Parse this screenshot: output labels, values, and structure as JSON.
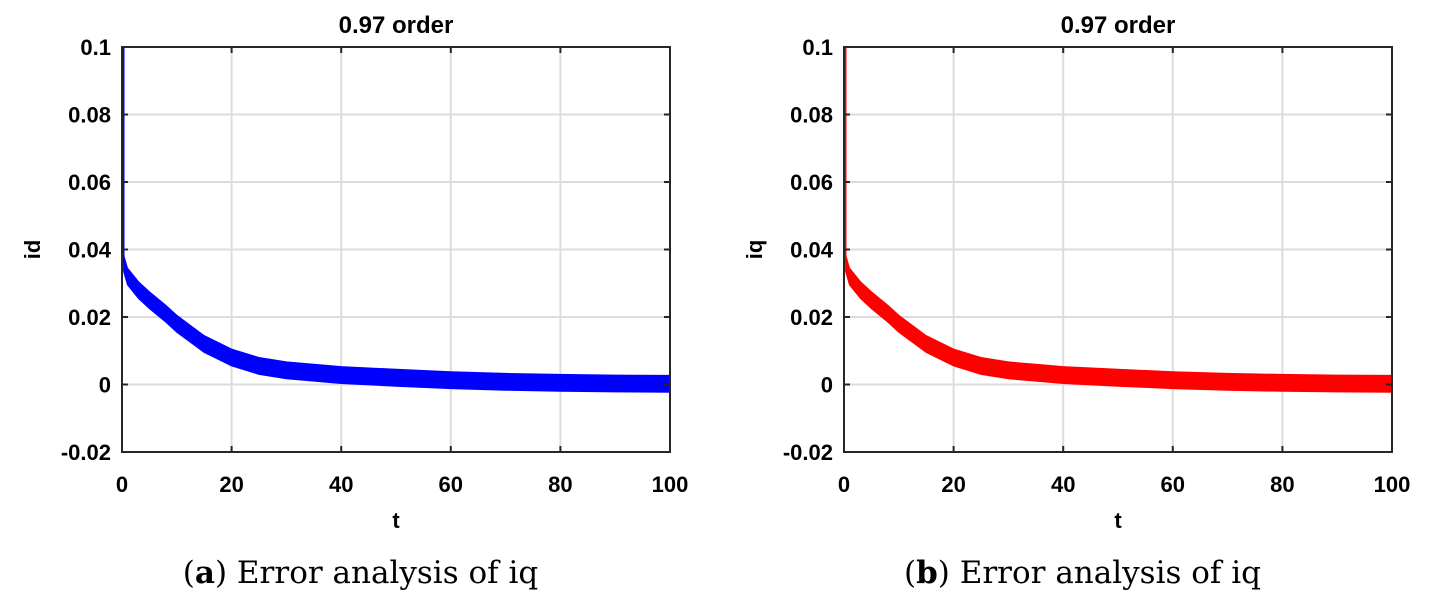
{
  "chart_data": [
    {
      "type": "line",
      "title": "0.97 order",
      "xlabel": "t",
      "ylabel": "id",
      "xlim": [
        0,
        100
      ],
      "ylim": [
        -0.02,
        0.1
      ],
      "xticks": [
        "0",
        "20",
        "40",
        "60",
        "80",
        "100"
      ],
      "yticks": [
        "-0.02",
        "0",
        "0.02",
        "0.04",
        "0.06",
        "0.08",
        "0.1"
      ],
      "grid": true,
      "color": "#0000ff",
      "series": [
        {
          "x": [
            0,
            0.3,
            1,
            3,
            5,
            8,
            10,
            15,
            20,
            25,
            30,
            35,
            40,
            50,
            60,
            70,
            80,
            90,
            100
          ],
          "y": [
            0.1,
            0.036,
            0.032,
            0.028,
            0.025,
            0.021,
            0.018,
            0.012,
            0.008,
            0.0055,
            0.0042,
            0.0035,
            0.0028,
            0.002,
            0.0013,
            0.0008,
            0.0005,
            0.0003,
            0.0002
          ],
          "band_halfwidth": 0.0025
        }
      ],
      "caption_label": "a",
      "caption_text": "Error analysis of iq"
    },
    {
      "type": "line",
      "title": "0.97 order",
      "xlabel": "t",
      "ylabel": "iq",
      "xlim": [
        0,
        100
      ],
      "ylim": [
        -0.02,
        0.1
      ],
      "xticks": [
        "0",
        "20",
        "40",
        "60",
        "80",
        "100"
      ],
      "yticks": [
        "-0.02",
        "0",
        "0.02",
        "0.04",
        "0.06",
        "0.08",
        "0.1"
      ],
      "grid": true,
      "color": "#ff0000",
      "series": [
        {
          "x": [
            0,
            0.3,
            1,
            3,
            5,
            8,
            10,
            15,
            20,
            25,
            30,
            35,
            40,
            50,
            60,
            70,
            80,
            90,
            100
          ],
          "y": [
            0.1,
            0.036,
            0.032,
            0.028,
            0.025,
            0.021,
            0.018,
            0.012,
            0.008,
            0.0055,
            0.0042,
            0.0035,
            0.0028,
            0.002,
            0.0013,
            0.0008,
            0.0005,
            0.0003,
            0.0002
          ],
          "band_halfwidth": 0.0025
        }
      ],
      "caption_label": "b",
      "caption_text": "Error analysis of iq"
    }
  ]
}
